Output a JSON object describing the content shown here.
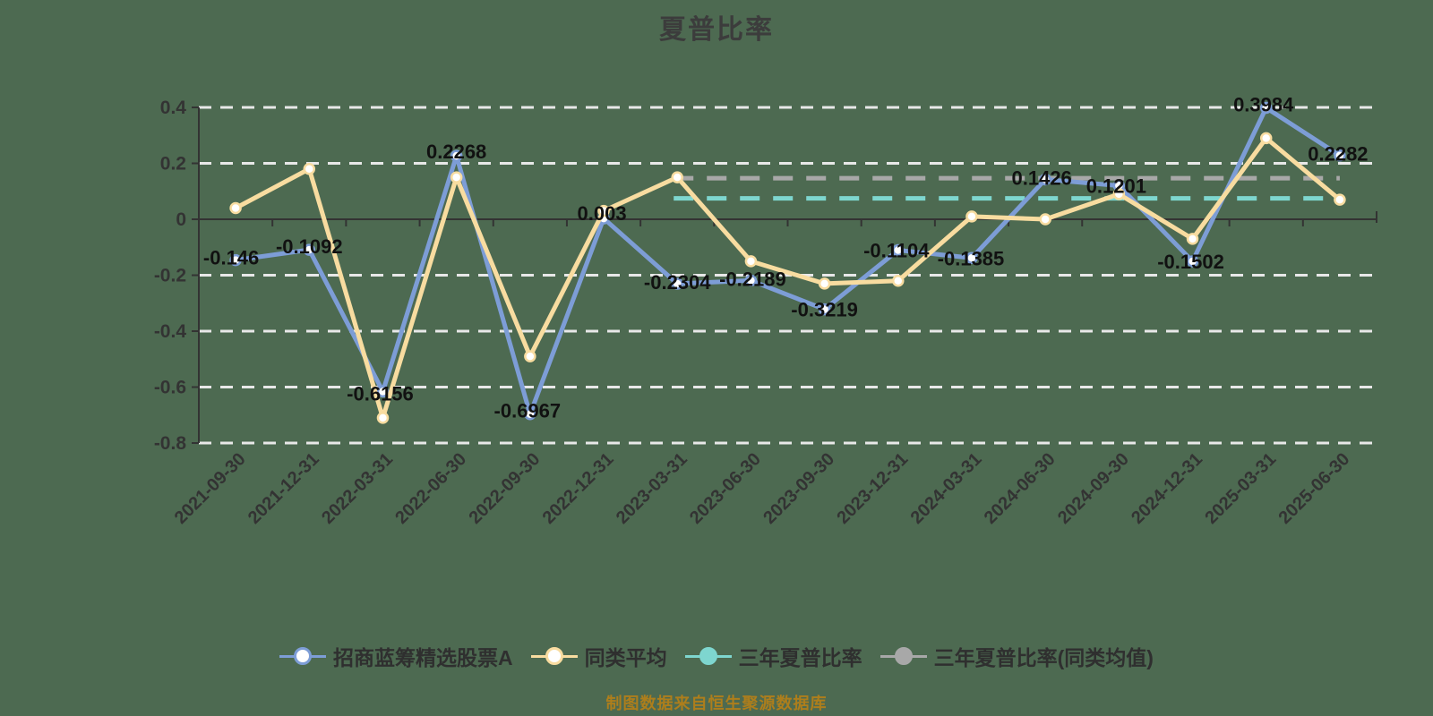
{
  "title": "夏普比率",
  "footer": "制图数据来自恒生聚源数据库",
  "colors": {
    "background": "#4d6a51",
    "grid": "#e8e8e8",
    "axis": "#333333",
    "title_text": "#3c3c3c",
    "footer_text": "#ad7e1c",
    "data_label": "#111111",
    "fund_line": "#7d9dd6",
    "peer_line": "#f8dca0",
    "three_year_line": "#7ed6cf",
    "three_year_peer_line": "#a8a8a8"
  },
  "chart_data": {
    "type": "line",
    "title": "夏普比率",
    "xlabel": "",
    "ylabel": "",
    "ylim": [
      -0.8,
      0.4
    ],
    "yticks": [
      0.4,
      0.2,
      0,
      -0.2,
      -0.4,
      -0.6,
      -0.8
    ],
    "ytick_labels": [
      "0.4",
      "0.2",
      "0",
      "-0.2",
      "-0.4",
      "-0.6",
      "-0.8"
    ],
    "grid": "horizontal-dashed",
    "legend_position": "bottom",
    "categories": [
      "2021-09-30",
      "2021-12-31",
      "2022-03-31",
      "2022-06-30",
      "2022-09-30",
      "2022-12-31",
      "2023-03-31",
      "2023-06-30",
      "2023-09-30",
      "2023-12-31",
      "2024-03-31",
      "2024-06-30",
      "2024-09-30",
      "2024-12-31",
      "2025-03-31",
      "2025-06-30"
    ],
    "series": [
      {
        "name": "招商蓝筹精选股票A",
        "color": "#7d9dd6",
        "marker": "circle-white-fill",
        "values": [
          -0.146,
          -0.1092,
          -0.6156,
          0.2268,
          -0.6967,
          0.003,
          -0.2304,
          -0.2189,
          -0.3219,
          -0.1104,
          -0.1385,
          0.1426,
          0.1201,
          -0.1502,
          0.3984,
          0.2282
        ],
        "labels": [
          "-0.146",
          "-0.1092",
          "-0.6156",
          "0.2268",
          "-0.6967",
          "0.003",
          "-0.2304",
          "-0.2189",
          "-0.3219",
          "-0.1104",
          "-0.1385",
          "0.1426",
          "0.1201",
          "-0.1502",
          "0.3984",
          "0.2282"
        ]
      },
      {
        "name": "同类平均",
        "color": "#f8dca0",
        "marker": "circle-white-fill",
        "values": [
          0.04,
          0.18,
          -0.71,
          0.15,
          -0.49,
          0.03,
          0.15,
          -0.15,
          -0.23,
          -0.22,
          0.01,
          0,
          0.09,
          -0.07,
          0.29,
          0.07
        ]
      }
    ],
    "ref_lines": [
      {
        "name": "三年夏普比率",
        "color": "#7ed6cf",
        "value": 0.075,
        "style": "dashed",
        "from_index": 6,
        "to_index": 15
      },
      {
        "name": "三年夏普比率(同类均值)",
        "color": "#a8a8a8",
        "value": 0.147,
        "style": "dashed",
        "from_index": 6,
        "to_index": 15
      }
    ]
  },
  "legend": {
    "items": [
      {
        "label": "招商蓝筹精选股票A",
        "color": "#7d9dd6",
        "fill": "#ffffff"
      },
      {
        "label": "同类平均",
        "color": "#f8dca0",
        "fill": "#ffffff"
      },
      {
        "label": "三年夏普比率",
        "color": "#7ed6cf",
        "fill": "#7ed6cf"
      },
      {
        "label": "三年夏普比率(同类均值)",
        "color": "#a8a8a8",
        "fill": "#a8a8a8"
      }
    ]
  }
}
